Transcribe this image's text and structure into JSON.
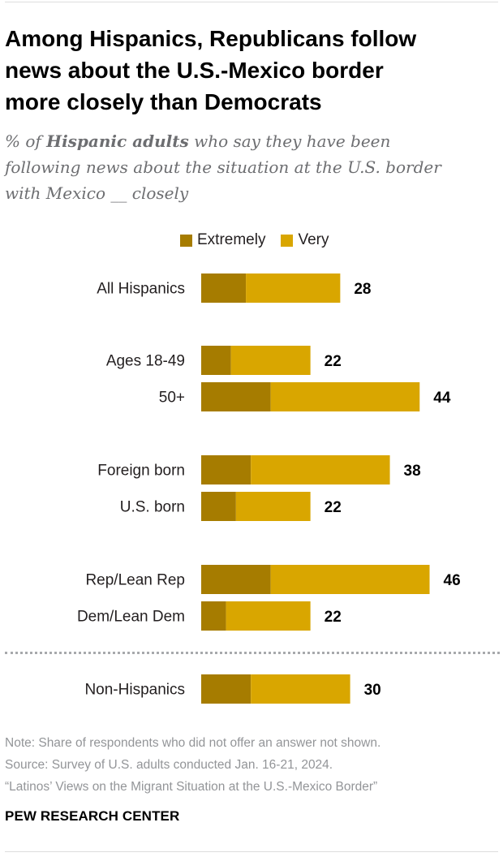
{
  "title_lines": [
    "Among Hispanics, Republicans follow",
    "news about the U.S.-Mexico border",
    "more closely than Democrats"
  ],
  "subtitle": {
    "prefix": "% of ",
    "bold": "Hispanic adults",
    "line1_rest": " who say they have been",
    "line2": "following news about the situation at the U.S. border",
    "line3": "with Mexico __ closely"
  },
  "legend": {
    "extremely": "Extremely",
    "very": "Very"
  },
  "colors": {
    "extremely": "#a67c00",
    "very": "#d9a600",
    "label": "#231f20",
    "total": "#000000"
  },
  "chart_data": {
    "type": "bar",
    "orientation": "horizontal",
    "stacked": true,
    "title": "Among Hispanics, Republicans follow news about the U.S.-Mexico border more closely than Democrats",
    "categories": [
      "All Hispanics",
      "Ages 18-49",
      "50+",
      "Foreign born",
      "U.S. born",
      "Rep/Lean Rep",
      "Dem/Lean Dem",
      "Non-Hispanics"
    ],
    "groups": [
      [
        "All Hispanics"
      ],
      [
        "Ages 18-49",
        "50+"
      ],
      [
        "Foreign born",
        "U.S. born"
      ],
      [
        "Rep/Lean Rep",
        "Dem/Lean Dem"
      ],
      [
        "Non-Hispanics"
      ]
    ],
    "series": [
      {
        "name": "Extremely",
        "values": [
          9,
          6,
          14,
          10,
          7,
          14,
          5,
          10
        ]
      },
      {
        "name": "Very",
        "values": [
          19,
          16,
          30,
          28,
          15,
          32,
          17,
          20
        ]
      }
    ],
    "totals": [
      28,
      22,
      44,
      38,
      22,
      46,
      22,
      30
    ],
    "xlim": [
      0,
      46
    ],
    "xlabel": "",
    "ylabel": ""
  },
  "footer": {
    "note": "Note: Share of respondents who did not offer an answer not shown.",
    "source": "Source: Survey of U.S. adults conducted Jan. 16-21, 2024.",
    "report": "“Latinos’ Views on the Migrant Situation at the U.S.-Mexico Border”",
    "brand": "PEW RESEARCH CENTER"
  }
}
